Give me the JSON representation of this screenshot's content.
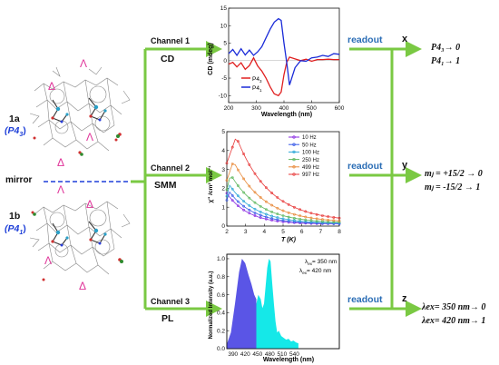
{
  "left": {
    "label_1a": "1a",
    "label_1a_sub": "(P4",
    "label_1a_sub_index": "3",
    "label_1a_close": ")",
    "label_1b": "1b",
    "label_1b_sub": "(P4",
    "label_1b_sub_index": "1",
    "label_1b_close": ")",
    "mirror": "mirror",
    "delta": "Δ",
    "lambda": "Λ"
  },
  "channels": [
    {
      "label": "Channel 1",
      "name": "CD",
      "readout": "readout",
      "axis": "x",
      "result1": "P4₃→ 0",
      "result2": "P4₁→ 1"
    },
    {
      "label": "Channel 2",
      "name": "SMM",
      "readout": "readout",
      "axis": "y",
      "result1": "mⱼ = +15/2 → 0",
      "result2": "mⱼ = -15/2 → 1"
    },
    {
      "label": "Channel 3",
      "name": "PL",
      "readout": "readout",
      "axis": "z",
      "result1": "λex= 350 nm→ 0",
      "result2": "λex= 420 nm→ 1"
    }
  ],
  "chart_data": [
    {
      "type": "line",
      "xlabel": "Wavelength (nm)",
      "ylabel": "CD (mdeg)",
      "xlim": [
        200,
        600
      ],
      "ylim": [
        -12,
        15
      ],
      "xticks": [
        200,
        300,
        400,
        500,
        600
      ],
      "yticks": [
        15,
        10,
        5,
        0,
        -5,
        -10
      ],
      "series": [
        {
          "name": "P4₃",
          "color": "#e02020",
          "x": [
            200,
            215,
            230,
            245,
            260,
            275,
            290,
            305,
            320,
            335,
            350,
            365,
            380,
            390,
            400,
            410,
            420,
            440,
            460,
            480,
            500,
            520,
            540,
            560,
            580,
            600
          ],
          "y": [
            -1,
            -0.5,
            -1.8,
            -0.6,
            -2.5,
            -1.4,
            0.8,
            -1.5,
            -3,
            -5,
            -7.5,
            -9.5,
            -10,
            -9,
            -4,
            -0.5,
            1,
            0.5,
            0,
            0.4,
            -0.2,
            0.3,
            0.3,
            0.4,
            0.3,
            0.3
          ]
        },
        {
          "name": "P4₁",
          "color": "#1a2bd8",
          "x": [
            200,
            215,
            230,
            245,
            260,
            275,
            290,
            305,
            320,
            335,
            350,
            365,
            380,
            390,
            400,
            410,
            420,
            440,
            460,
            480,
            500,
            520,
            540,
            560,
            580,
            600
          ],
          "y": [
            2,
            3.2,
            1.5,
            3.4,
            1.6,
            3,
            1.5,
            2.5,
            4,
            6.5,
            9,
            11,
            12,
            11.5,
            5,
            -0.5,
            -7,
            -2,
            0,
            -0.2,
            0.8,
            1,
            1.5,
            1.2,
            2,
            1.8
          ]
        }
      ]
    },
    {
      "type": "line",
      "xlabel": "T (K)",
      "ylabel": "χ'' /cm³ mol⁻¹",
      "xlim": [
        2,
        8
      ],
      "ylim": [
        0,
        5
      ],
      "xticks": [
        2,
        3,
        4,
        5,
        6,
        7,
        8
      ],
      "yticks": [
        0,
        1,
        2,
        3,
        4,
        5
      ],
      "series": [
        {
          "name": "10 Hz",
          "color": "#8a2be2",
          "peak": 1.7,
          "peakT": 2.0
        },
        {
          "name": "50 Hz",
          "color": "#3a5be8",
          "peak": 1.9,
          "peakT": 2.05
        },
        {
          "name": "100 Hz",
          "color": "#2fa8d8",
          "peak": 2.2,
          "peakT": 2.1
        },
        {
          "name": "250 Hz",
          "color": "#5fb85f",
          "peak": 2.7,
          "peakT": 2.2
        },
        {
          "name": "499 Hz",
          "color": "#e88a3a",
          "peak": 3.4,
          "peakT": 2.35
        },
        {
          "name": "997 Hz",
          "color": "#e83a3a",
          "peak": 4.7,
          "peakT": 2.5
        }
      ]
    },
    {
      "type": "area",
      "xlabel": "Wavelength (nm)",
      "ylabel": "Normalized Intensity (a.u.)",
      "xlim": [
        375,
        650
      ],
      "ylim": [
        0,
        1.05
      ],
      "xticks": [
        390,
        420,
        450,
        480,
        510,
        540
      ],
      "yticks": [
        0.0,
        0.2,
        0.4,
        0.6,
        0.8,
        1.0
      ],
      "series": [
        {
          "name": "λex= 350 nm",
          "color": "#5a55e6",
          "x": [
            375,
            385,
            395,
            405,
            412,
            420,
            428,
            435,
            442,
            447
          ],
          "y": [
            0.05,
            0.18,
            0.5,
            0.85,
            1.0,
            0.95,
            0.82,
            0.72,
            0.6,
            0.55
          ]
        },
        {
          "name": "λex= 420 nm",
          "color": "#15e8e8",
          "x": [
            447,
            452,
            458,
            462,
            466,
            470,
            474,
            478,
            482,
            486,
            490,
            494,
            498,
            502,
            508,
            514,
            520,
            526,
            532,
            538,
            544,
            550
          ],
          "y": [
            0.5,
            0.6,
            0.55,
            0.45,
            0.5,
            0.7,
            0.9,
            1.0,
            0.97,
            0.72,
            0.5,
            0.3,
            0.18,
            0.2,
            0.14,
            0.12,
            0.1,
            0.11,
            0.08,
            0.09,
            0.07,
            0.06
          ]
        }
      ]
    }
  ],
  "colors": {
    "arrow": "#7ac943",
    "readout_text": "#2a6db5",
    "mirror_line": "#1e3fd8",
    "delta_lambda": "#e0369a"
  },
  "chart1_legend": {
    "s1": "P4",
    "s1_sub": "3",
    "s2": "P4",
    "s2_sub": "1"
  },
  "chart3_legend": {
    "s1": "λ",
    "s1_sub": "ex",
    "s1_rest": "= 350 nm",
    "s2": "λ",
    "s2_sub": "ex",
    "s2_rest": "= 420 nm"
  }
}
